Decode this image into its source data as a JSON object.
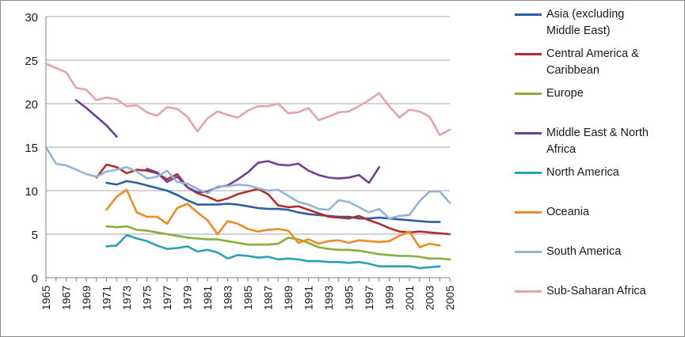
{
  "chart_data": {
    "type": "line",
    "title": "",
    "xlabel": "",
    "ylabel": "",
    "ylim": [
      0,
      30
    ],
    "yticks": [
      0,
      5,
      10,
      15,
      20,
      25,
      30
    ],
    "xlim": [
      1965,
      2005
    ],
    "xticks": [
      1965,
      1967,
      1969,
      1971,
      1973,
      1975,
      1977,
      1979,
      1981,
      1983,
      1985,
      1987,
      1989,
      1991,
      1993,
      1995,
      1997,
      1999,
      2001,
      2003,
      2005
    ],
    "grid": true,
    "legend_position": "right",
    "series": [
      {
        "name": "Asia (excluding\nMiddle East)",
        "color": "#2e5da8",
        "points": [
          [
            1971,
            10.9
          ],
          [
            1972,
            10.7
          ],
          [
            1973,
            11.1
          ],
          [
            1974,
            10.9
          ],
          [
            1975,
            10.6
          ],
          [
            1976,
            10.3
          ],
          [
            1977,
            10.0
          ],
          [
            1978,
            9.5
          ],
          [
            1979,
            8.9
          ],
          [
            1980,
            8.4
          ],
          [
            1981,
            8.4
          ],
          [
            1982,
            8.4
          ],
          [
            1983,
            8.5
          ],
          [
            1984,
            8.4
          ],
          [
            1985,
            8.2
          ],
          [
            1986,
            8.0
          ],
          [
            1987,
            7.9
          ],
          [
            1988,
            7.9
          ],
          [
            1989,
            7.8
          ],
          [
            1990,
            7.5
          ],
          [
            1991,
            7.3
          ],
          [
            1992,
            7.2
          ],
          [
            1993,
            7.1
          ],
          [
            1994,
            7.0
          ],
          [
            1995,
            7.0
          ],
          [
            1996,
            6.8
          ],
          [
            1997,
            6.8
          ],
          [
            1998,
            6.9
          ],
          [
            1999,
            6.8
          ],
          [
            2000,
            6.7
          ],
          [
            2001,
            6.6
          ],
          [
            2002,
            6.5
          ],
          [
            2003,
            6.4
          ],
          [
            2004,
            6.4
          ]
        ]
      },
      {
        "name": "Central America &\nCaribbean",
        "color": "#b22d2d",
        "points": [
          [
            1970,
            11.5
          ],
          [
            1971,
            13.0
          ],
          [
            1972,
            12.7
          ],
          [
            1973,
            12.0
          ],
          [
            1974,
            12.4
          ],
          [
            1975,
            12.3
          ],
          [
            1976,
            12.0
          ],
          [
            1977,
            11.3
          ],
          [
            1978,
            11.9
          ],
          [
            1979,
            10.4
          ],
          [
            1980,
            9.7
          ],
          [
            1981,
            9.3
          ],
          [
            1982,
            8.8
          ],
          [
            1983,
            9.1
          ],
          [
            1984,
            9.6
          ],
          [
            1985,
            9.9
          ],
          [
            1986,
            10.2
          ],
          [
            1987,
            9.6
          ],
          [
            1988,
            8.3
          ],
          [
            1989,
            8.1
          ],
          [
            1990,
            8.2
          ],
          [
            1991,
            7.8
          ],
          [
            1992,
            7.4
          ],
          [
            1993,
            7.0
          ],
          [
            1994,
            6.9
          ],
          [
            1995,
            6.8
          ],
          [
            1996,
            7.1
          ],
          [
            1997,
            6.6
          ],
          [
            1998,
            6.2
          ],
          [
            1999,
            5.7
          ],
          [
            2000,
            5.3
          ],
          [
            2001,
            5.2
          ],
          [
            2002,
            5.3
          ],
          [
            2003,
            5.2
          ],
          [
            2004,
            5.1
          ],
          [
            2005,
            5.0
          ]
        ]
      },
      {
        "name": "Europe",
        "color": "#8aad3b",
        "points": [
          [
            1971,
            5.9
          ],
          [
            1972,
            5.8
          ],
          [
            1973,
            5.9
          ],
          [
            1974,
            5.5
          ],
          [
            1975,
            5.4
          ],
          [
            1976,
            5.2
          ],
          [
            1977,
            5.0
          ],
          [
            1978,
            4.8
          ],
          [
            1979,
            4.6
          ],
          [
            1980,
            4.5
          ],
          [
            1981,
            4.4
          ],
          [
            1982,
            4.4
          ],
          [
            1983,
            4.2
          ],
          [
            1984,
            4.0
          ],
          [
            1985,
            3.8
          ],
          [
            1986,
            3.8
          ],
          [
            1987,
            3.8
          ],
          [
            1988,
            3.9
          ],
          [
            1989,
            4.6
          ],
          [
            1990,
            4.4
          ],
          [
            1991,
            4.0
          ],
          [
            1992,
            3.5
          ],
          [
            1993,
            3.3
          ],
          [
            1994,
            3.2
          ],
          [
            1995,
            3.2
          ],
          [
            1996,
            3.1
          ],
          [
            1997,
            2.9
          ],
          [
            1998,
            2.7
          ],
          [
            1999,
            2.6
          ],
          [
            2000,
            2.5
          ],
          [
            2001,
            2.5
          ],
          [
            2002,
            2.4
          ],
          [
            2003,
            2.2
          ],
          [
            2004,
            2.2
          ],
          [
            2005,
            2.1
          ]
        ]
      },
      {
        "name": "Middle East & North\nAfrica",
        "color": "#6d3f96",
        "points": [
          [
            1968,
            20.4
          ],
          [
            1969,
            19.5
          ],
          [
            1970,
            18.5
          ],
          [
            1971,
            17.5
          ],
          [
            1972,
            16.2
          ],
          [
            1973,
            null
          ],
          [
            1974,
            null
          ],
          [
            1975,
            12.5
          ],
          [
            1976,
            12.1
          ],
          [
            1977,
            11.0
          ],
          [
            1978,
            11.6
          ],
          [
            1979,
            10.4
          ],
          [
            1980,
            9.8
          ],
          [
            1981,
            9.9
          ],
          [
            1982,
            10.4
          ],
          [
            1983,
            10.6
          ],
          [
            1984,
            11.3
          ],
          [
            1985,
            12.1
          ],
          [
            1986,
            13.2
          ],
          [
            1987,
            13.4
          ],
          [
            1988,
            13.0
          ],
          [
            1989,
            12.9
          ],
          [
            1990,
            13.1
          ],
          [
            1991,
            12.3
          ],
          [
            1992,
            11.8
          ],
          [
            1993,
            11.5
          ],
          [
            1994,
            11.4
          ],
          [
            1995,
            11.5
          ],
          [
            1996,
            11.8
          ],
          [
            1997,
            10.9
          ],
          [
            1998,
            12.7
          ]
        ]
      },
      {
        "name": "North America",
        "color": "#2aa0b3",
        "points": [
          [
            1971,
            3.6
          ],
          [
            1972,
            3.7
          ],
          [
            1973,
            4.9
          ],
          [
            1974,
            4.5
          ],
          [
            1975,
            4.2
          ],
          [
            1976,
            3.7
          ],
          [
            1977,
            3.3
          ],
          [
            1978,
            3.4
          ],
          [
            1979,
            3.6
          ],
          [
            1980,
            3.0
          ],
          [
            1981,
            3.2
          ],
          [
            1982,
            2.9
          ],
          [
            1983,
            2.2
          ],
          [
            1984,
            2.6
          ],
          [
            1985,
            2.5
          ],
          [
            1986,
            2.3
          ],
          [
            1987,
            2.4
          ],
          [
            1988,
            2.1
          ],
          [
            1989,
            2.2
          ],
          [
            1990,
            2.1
          ],
          [
            1991,
            1.9
          ],
          [
            1992,
            1.9
          ],
          [
            1993,
            1.8
          ],
          [
            1994,
            1.8
          ],
          [
            1995,
            1.7
          ],
          [
            1996,
            1.8
          ],
          [
            1997,
            1.6
          ],
          [
            1998,
            1.3
          ],
          [
            1999,
            1.3
          ],
          [
            2000,
            1.3
          ],
          [
            2001,
            1.3
          ],
          [
            2002,
            1.1
          ],
          [
            2003,
            1.2
          ],
          [
            2004,
            1.3
          ]
        ]
      },
      {
        "name": "Oceania",
        "color": "#f08a24",
        "points": [
          [
            1971,
            7.8
          ],
          [
            1972,
            9.3
          ],
          [
            1973,
            10.1
          ],
          [
            1974,
            7.5
          ],
          [
            1975,
            7.0
          ],
          [
            1976,
            7.0
          ],
          [
            1977,
            6.2
          ],
          [
            1978,
            8.0
          ],
          [
            1979,
            8.5
          ],
          [
            1980,
            7.5
          ],
          [
            1981,
            6.6
          ],
          [
            1982,
            5.0
          ],
          [
            1983,
            6.5
          ],
          [
            1984,
            6.2
          ],
          [
            1985,
            5.6
          ],
          [
            1986,
            5.3
          ],
          [
            1987,
            5.5
          ],
          [
            1988,
            5.6
          ],
          [
            1989,
            5.4
          ],
          [
            1990,
            4.0
          ],
          [
            1991,
            4.4
          ],
          [
            1992,
            3.9
          ],
          [
            1993,
            4.2
          ],
          [
            1994,
            4.3
          ],
          [
            1995,
            4.0
          ],
          [
            1996,
            4.3
          ],
          [
            1997,
            4.2
          ],
          [
            1998,
            4.1
          ],
          [
            1999,
            4.2
          ],
          [
            2000,
            4.8
          ],
          [
            2001,
            5.3
          ],
          [
            2002,
            3.5
          ],
          [
            2003,
            3.9
          ],
          [
            2004,
            3.7
          ]
        ]
      },
      {
        "name": "South America",
        "color": "#94b3d9",
        "points": [
          [
            1965,
            15.0
          ],
          [
            1966,
            13.1
          ],
          [
            1967,
            12.9
          ],
          [
            1968,
            12.4
          ],
          [
            1969,
            11.9
          ],
          [
            1970,
            11.6
          ],
          [
            1971,
            12.2
          ],
          [
            1972,
            12.4
          ],
          [
            1973,
            12.7
          ],
          [
            1974,
            12.2
          ],
          [
            1975,
            11.4
          ],
          [
            1976,
            11.6
          ],
          [
            1977,
            12.3
          ],
          [
            1978,
            11.0
          ],
          [
            1979,
            10.8
          ],
          [
            1980,
            10.2
          ],
          [
            1981,
            9.7
          ],
          [
            1982,
            10.5
          ],
          [
            1983,
            10.5
          ],
          [
            1984,
            10.7
          ],
          [
            1985,
            10.6
          ],
          [
            1986,
            10.3
          ],
          [
            1987,
            10.0
          ],
          [
            1988,
            10.1
          ],
          [
            1989,
            9.4
          ],
          [
            1990,
            8.7
          ],
          [
            1991,
            8.4
          ],
          [
            1992,
            7.9
          ],
          [
            1993,
            7.8
          ],
          [
            1994,
            8.9
          ],
          [
            1995,
            8.7
          ],
          [
            1996,
            8.1
          ],
          [
            1997,
            7.5
          ],
          [
            1998,
            7.9
          ],
          [
            1999,
            6.8
          ],
          [
            2000,
            7.1
          ],
          [
            2001,
            7.2
          ],
          [
            2002,
            8.8
          ],
          [
            2003,
            9.9
          ],
          [
            2004,
            9.9
          ],
          [
            2005,
            8.6
          ]
        ]
      },
      {
        "name": "Sub-Saharan Africa",
        "color": "#e8a3a3",
        "points": [
          [
            1965,
            24.6
          ],
          [
            1966,
            24.1
          ],
          [
            1967,
            23.6
          ],
          [
            1968,
            21.8
          ],
          [
            1969,
            21.6
          ],
          [
            1970,
            20.4
          ],
          [
            1971,
            20.7
          ],
          [
            1972,
            20.5
          ],
          [
            1973,
            19.7
          ],
          [
            1974,
            19.8
          ],
          [
            1975,
            19.0
          ],
          [
            1976,
            18.6
          ],
          [
            1977,
            19.6
          ],
          [
            1978,
            19.4
          ],
          [
            1979,
            18.5
          ],
          [
            1980,
            16.8
          ],
          [
            1981,
            18.3
          ],
          [
            1982,
            19.1
          ],
          [
            1983,
            18.7
          ],
          [
            1984,
            18.4
          ],
          [
            1985,
            19.2
          ],
          [
            1986,
            19.7
          ],
          [
            1987,
            19.7
          ],
          [
            1988,
            20.0
          ],
          [
            1989,
            18.9
          ],
          [
            1990,
            19.0
          ],
          [
            1991,
            19.5
          ],
          [
            1992,
            18.1
          ],
          [
            1993,
            18.5
          ],
          [
            1994,
            19.0
          ],
          [
            1995,
            19.1
          ],
          [
            1996,
            19.7
          ],
          [
            1997,
            20.4
          ],
          [
            1998,
            21.2
          ],
          [
            1999,
            19.7
          ],
          [
            2000,
            18.4
          ],
          [
            2001,
            19.3
          ],
          [
            2002,
            19.1
          ],
          [
            2003,
            18.5
          ],
          [
            2004,
            16.4
          ],
          [
            2005,
            17.0
          ]
        ]
      }
    ]
  }
}
